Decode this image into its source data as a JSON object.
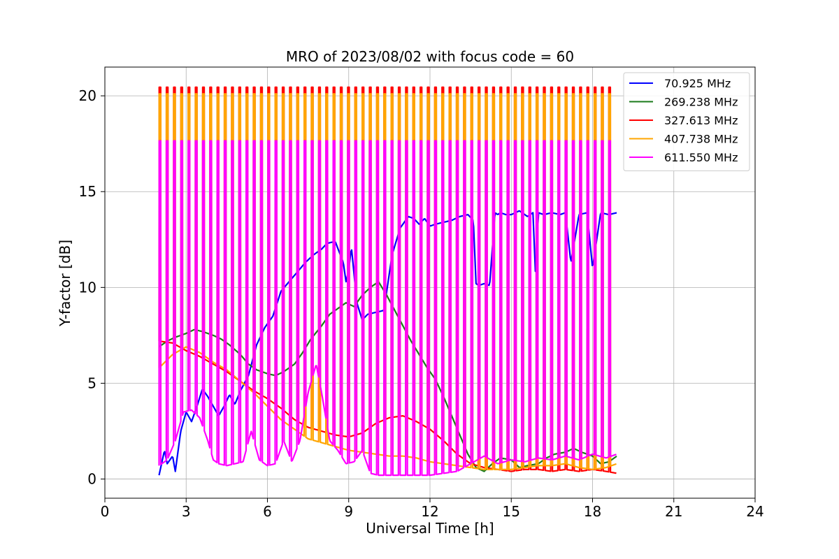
{
  "chart_data": {
    "type": "line",
    "title": "MRO of 2023/08/02 with focus code = 60",
    "xlabel": "Universal Time [h]",
    "ylabel": "Y-factor [dB]",
    "xlim": [
      0,
      24
    ],
    "ylim": [
      -1,
      21.5
    ],
    "xticks": [
      0,
      3,
      6,
      9,
      12,
      15,
      18,
      21,
      24
    ],
    "yticks": [
      0,
      5,
      10,
      15,
      20
    ],
    "grid": true,
    "legend_position": "top-right",
    "calibration_spikes": {
      "start_h": 2.0,
      "end_h": 18.85,
      "interval_h": 0.2677,
      "width_h": 0.06,
      "peak_db": {
        "70.925 MHz": 0,
        "269.238 MHz": 0,
        "327.613 MHz": 20.45,
        "407.738 MHz": 20.1,
        "611.550 MHz": 17.65
      }
    },
    "series": [
      {
        "name": " 70.925 MHz",
        "color": "#0000ff",
        "x": [
          2.0,
          2.2,
          2.3,
          2.5,
          2.6,
          2.8,
          3.0,
          3.2,
          3.4,
          3.6,
          3.8,
          4.0,
          4.2,
          4.4,
          4.6,
          4.8,
          5.0,
          5.3,
          5.6,
          5.9,
          6.2,
          6.5,
          6.8,
          7.1,
          7.4,
          7.7,
          8.0,
          8.2,
          8.5,
          8.8,
          8.9,
          9.0,
          9.1,
          9.3,
          9.5,
          9.7,
          10.0,
          10.3,
          10.6,
          10.9,
          11.2,
          11.4,
          11.6,
          11.8,
          12.0,
          12.2,
          12.5,
          12.8,
          13.1,
          13.4,
          13.6,
          13.7,
          13.8,
          14.0,
          14.2,
          14.4,
          14.5,
          14.6,
          14.8,
          15.0,
          15.3,
          15.6,
          15.8,
          15.9,
          16.0,
          16.2,
          16.5,
          16.8,
          17.0,
          17.2,
          17.5,
          17.8,
          18.0,
          18.3,
          18.6,
          18.9
        ],
        "y": [
          0.2,
          1.5,
          0.8,
          1.2,
          0.4,
          2.5,
          3.5,
          3.0,
          3.8,
          4.7,
          4.3,
          3.8,
          3.3,
          3.8,
          4.4,
          3.9,
          4.6,
          5.4,
          7.0,
          7.9,
          8.5,
          9.8,
          10.3,
          10.8,
          11.3,
          11.7,
          12.0,
          12.3,
          12.4,
          11.3,
          10.3,
          10.9,
          12.1,
          9.2,
          8.3,
          8.6,
          8.7,
          8.8,
          11.7,
          13.1,
          13.7,
          13.6,
          13.3,
          13.6,
          13.2,
          13.3,
          13.4,
          13.5,
          13.7,
          13.8,
          13.5,
          10.2,
          10.1,
          10.2,
          10.1,
          13.9,
          13.8,
          13.9,
          13.8,
          13.8,
          14.0,
          13.7,
          13.9,
          10.5,
          13.9,
          13.8,
          13.9,
          13.8,
          13.9,
          11.3,
          13.8,
          13.9,
          11.0,
          13.9,
          13.8,
          13.9
        ]
      },
      {
        "name": "269.238 MHz",
        "color": "#1a7a1a",
        "x": [
          2.0,
          2.3,
          2.6,
          3.0,
          3.3,
          3.6,
          4.0,
          4.3,
          4.6,
          5.0,
          5.3,
          5.6,
          6.0,
          6.3,
          6.6,
          7.0,
          7.3,
          7.6,
          8.0,
          8.3,
          8.6,
          8.9,
          9.2,
          9.5,
          9.8,
          10.1,
          10.4,
          10.7,
          11.0,
          11.3,
          11.6,
          11.9,
          12.2,
          12.5,
          12.8,
          13.1,
          13.4,
          13.7,
          14.0,
          14.3,
          14.6,
          15.0,
          15.3,
          15.6,
          16.0,
          16.3,
          16.6,
          17.0,
          17.3,
          17.6,
          18.0,
          18.3,
          18.6,
          18.9
        ],
        "y": [
          6.9,
          7.2,
          7.4,
          7.6,
          7.8,
          7.7,
          7.5,
          7.3,
          7.0,
          6.5,
          6.0,
          5.7,
          5.5,
          5.4,
          5.6,
          6.0,
          6.6,
          7.3,
          8.0,
          8.6,
          8.9,
          9.2,
          9.0,
          9.6,
          10.0,
          10.3,
          9.6,
          8.8,
          8.0,
          7.2,
          6.5,
          5.8,
          5.2,
          4.3,
          3.3,
          2.3,
          1.3,
          0.6,
          0.4,
          0.8,
          1.1,
          1.0,
          0.6,
          0.7,
          0.8,
          1.1,
          1.3,
          1.4,
          1.6,
          1.4,
          1.2,
          0.8,
          0.9,
          1.2
        ]
      },
      {
        "name": "327.613 MHz",
        "color": "#ff0000",
        "x": [
          2.0,
          2.5,
          3.0,
          3.5,
          4.0,
          4.5,
          5.0,
          5.5,
          6.0,
          6.5,
          7.0,
          7.5,
          8.0,
          8.5,
          9.0,
          9.5,
          10.0,
          10.5,
          11.0,
          11.5,
          12.0,
          12.5,
          13.0,
          13.5,
          14.0,
          14.5,
          15.0,
          15.5,
          16.0,
          16.5,
          17.0,
          17.5,
          18.0,
          18.5,
          18.9
        ],
        "y": [
          7.2,
          7.1,
          6.7,
          6.4,
          6.0,
          5.6,
          5.1,
          4.6,
          4.2,
          3.7,
          3.1,
          2.7,
          2.5,
          2.3,
          2.2,
          2.4,
          2.9,
          3.2,
          3.3,
          3.0,
          2.6,
          2.0,
          1.3,
          0.8,
          0.6,
          0.5,
          0.4,
          0.5,
          0.5,
          0.4,
          0.5,
          0.4,
          0.5,
          0.4,
          0.3
        ]
      },
      {
        "name": "407.738 MHz",
        "color": "#ffa500",
        "x": [
          2.0,
          2.5,
          3.0,
          3.5,
          4.0,
          4.5,
          5.0,
          5.5,
          6.0,
          6.5,
          7.0,
          7.5,
          8.0,
          8.5,
          9.0,
          9.5,
          10.0,
          10.5,
          11.0,
          11.5,
          12.0,
          12.5,
          13.0,
          13.5,
          14.0,
          14.5,
          15.0,
          15.5,
          16.0,
          16.5,
          17.0,
          17.5,
          18.0,
          18.5,
          18.9
        ],
        "y": [
          5.8,
          6.5,
          6.9,
          6.6,
          6.1,
          5.7,
          5.1,
          4.5,
          3.8,
          3.1,
          2.6,
          2.1,
          1.9,
          1.7,
          1.5,
          1.4,
          1.3,
          1.2,
          1.2,
          1.1,
          0.9,
          0.8,
          0.7,
          0.6,
          0.5,
          0.5,
          0.5,
          0.6,
          0.7,
          0.7,
          0.8,
          0.6,
          0.5,
          0.6,
          0.8
        ]
      },
      {
        "name": "611.550 MHz",
        "color": "#ff00ff",
        "x": [
          2.0,
          2.3,
          2.6,
          2.9,
          3.2,
          3.5,
          3.8,
          4.0,
          4.2,
          4.5,
          4.8,
          5.1,
          5.4,
          5.7,
          6.0,
          6.3,
          6.6,
          6.9,
          7.2,
          7.5,
          7.8,
          8.0,
          8.3,
          8.6,
          8.9,
          9.2,
          9.5,
          9.8,
          10.1,
          10.5,
          11.0,
          11.5,
          12.0,
          12.5,
          13.0,
          13.5,
          14.0,
          14.5,
          15.0,
          15.5,
          16.0,
          16.5,
          17.0,
          17.5,
          18.0,
          18.5,
          18.9
        ],
        "y": [
          0.7,
          1.0,
          2.0,
          3.5,
          3.6,
          3.2,
          2.0,
          1.0,
          0.8,
          0.7,
          0.8,
          0.9,
          2.5,
          1.0,
          0.7,
          0.8,
          2.0,
          0.9,
          2.0,
          4.5,
          6.0,
          4.5,
          2.0,
          1.5,
          0.8,
          0.9,
          1.5,
          0.3,
          0.2,
          0.2,
          0.2,
          0.2,
          0.2,
          0.3,
          0.4,
          0.8,
          1.2,
          0.8,
          1.0,
          0.9,
          1.1,
          1.0,
          1.2,
          1.0,
          1.3,
          1.1,
          1.3
        ]
      }
    ]
  }
}
